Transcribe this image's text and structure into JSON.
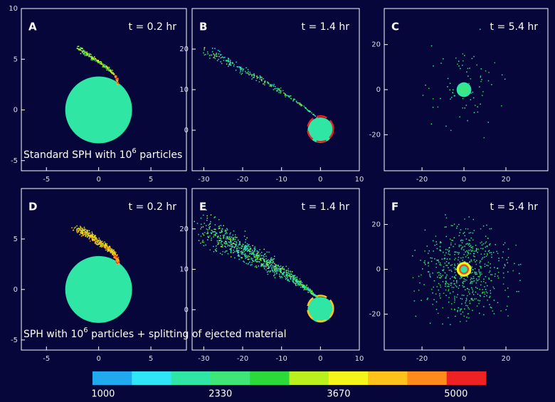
{
  "panels": [
    {
      "label": "A",
      "time": "t = 0.2 hr",
      "caption": [
        "Standard SPH with 10",
        "6",
        " particles"
      ],
      "xlim": [
        -7.4,
        8.4
      ],
      "ylim": [
        -6,
        10
      ],
      "xticks": [
        -5,
        0,
        5
      ],
      "yticks": [
        -5,
        0,
        5,
        10
      ]
    },
    {
      "label": "B",
      "time": "t = 1.4 hr",
      "xlim": [
        -33,
        10
      ],
      "ylim": [
        -10,
        30
      ],
      "xticks": [
        -30,
        -20,
        -10,
        0,
        10
      ],
      "yticks": [
        0,
        10,
        20
      ]
    },
    {
      "label": "C",
      "time": "t = 5.4 hr",
      "xlim": [
        -38,
        40
      ],
      "ylim": [
        -36,
        36
      ],
      "xticks": [
        -20,
        0,
        20
      ],
      "yticks": [
        -20,
        0,
        20
      ]
    },
    {
      "label": "D",
      "time": "t = 0.2 hr",
      "caption": [
        "SPH with 10",
        "6",
        " particles + splitting of ejected material"
      ],
      "xlim": [
        -7.4,
        8.4
      ],
      "ylim": [
        -6,
        10
      ],
      "xticks": [
        -5,
        0,
        5
      ],
      "yticks": [
        -5,
        0,
        5
      ]
    },
    {
      "label": "E",
      "time": "t = 1.4 hr",
      "xlim": [
        -33,
        10
      ],
      "ylim": [
        -10,
        30
      ],
      "xticks": [
        -30,
        -20,
        -10,
        0,
        10
      ],
      "yticks": [
        0,
        10,
        20
      ]
    },
    {
      "label": "F",
      "time": "t = 5.4 hr",
      "xlim": [
        -38,
        40
      ],
      "ylim": [
        -36,
        36
      ],
      "xticks": [
        -20,
        0,
        20
      ],
      "yticks": [
        -20,
        0,
        20
      ]
    }
  ],
  "colorbar": {
    "lim": [
      880,
      5340
    ],
    "ticks": [
      1000,
      2330,
      3670,
      5000
    ],
    "colors": [
      "#21a9ef",
      "#2ee6f5",
      "#2fe6a5",
      "#3ee67a",
      "#2bd93a",
      "#b9f01e",
      "#f5f51a",
      "#ffc21a",
      "#ff8c1a",
      "#ee2222"
    ]
  }
}
